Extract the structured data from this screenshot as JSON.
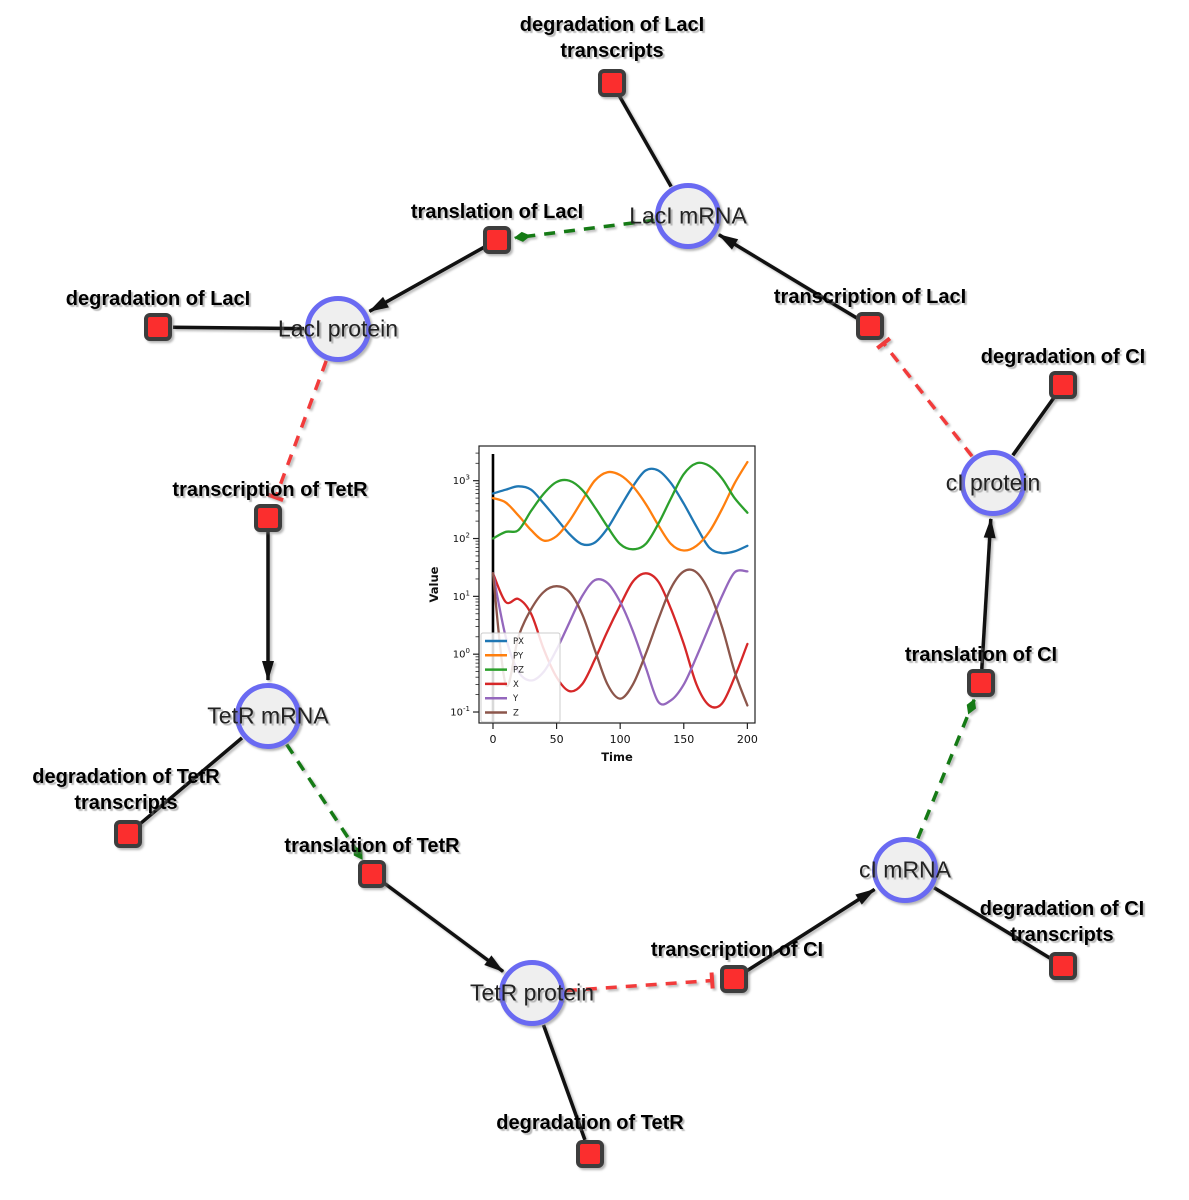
{
  "diagram": {
    "styles": {
      "species_fill": "#efefef",
      "species_border": "#6a6af2",
      "reaction_fill": "#fb2e2e",
      "reaction_border": "#3d3d3d",
      "reactant_edge_color": "#111111",
      "product_arrow_color": "#111111",
      "inhibition_edge_color": "#f23b3b",
      "modifier_edge_color": "#157a15"
    },
    "nodes": [
      {
        "id": "lacI_mrna",
        "kind": "species",
        "label": "LacI mRNA"
      },
      {
        "id": "lacI_protein",
        "kind": "species",
        "label": "LacI protein"
      },
      {
        "id": "tetR_mrna",
        "kind": "species",
        "label": "TetR mRNA"
      },
      {
        "id": "tetR_protein",
        "kind": "species",
        "label": "TetR protein"
      },
      {
        "id": "cI_mrna",
        "kind": "species",
        "label": "cI mRNA"
      },
      {
        "id": "cI_protein",
        "kind": "species",
        "label": "cI protein"
      },
      {
        "id": "deg_lacI_tx",
        "kind": "reaction",
        "label_lines": [
          "degradation of LacI",
          "transcripts"
        ]
      },
      {
        "id": "translation_lacI",
        "kind": "reaction",
        "label_lines": [
          "translation of LacI"
        ]
      },
      {
        "id": "transcription_lacI",
        "kind": "reaction",
        "label_lines": [
          "transcription of LacI"
        ]
      },
      {
        "id": "deg_lacI",
        "kind": "reaction",
        "label_lines": [
          "degradation of LacI"
        ]
      },
      {
        "id": "deg_cI",
        "kind": "reaction",
        "label_lines": [
          "degradation of CI"
        ]
      },
      {
        "id": "transcription_tetR",
        "kind": "reaction",
        "label_lines": [
          "transcription of TetR"
        ]
      },
      {
        "id": "translation_cI",
        "kind": "reaction",
        "label_lines": [
          "translation of CI"
        ]
      },
      {
        "id": "deg_tetR_tx",
        "kind": "reaction",
        "label_lines": [
          "degradation of TetR",
          "transcripts"
        ]
      },
      {
        "id": "translation_tetR",
        "kind": "reaction",
        "label_lines": [
          "translation of TetR"
        ]
      },
      {
        "id": "deg_cI_tx",
        "kind": "reaction",
        "label_lines": [
          "degradation of CI",
          "transcripts"
        ]
      },
      {
        "id": "transcription_cI",
        "kind": "reaction",
        "label_lines": [
          "transcription of CI"
        ]
      },
      {
        "id": "deg_tetR",
        "kind": "reaction",
        "label_lines": [
          "degradation of TetR"
        ]
      }
    ],
    "edges": [
      {
        "source": "lacI_mrna",
        "target": "deg_lacI_tx",
        "kind": "line"
      },
      {
        "source": "lacI_mrna",
        "target": "translation_lacI",
        "kind": "modifier"
      },
      {
        "source": "translation_lacI",
        "target": "lacI_protein",
        "kind": "arrow"
      },
      {
        "source": "lacI_protein",
        "target": "deg_lacI",
        "kind": "line"
      },
      {
        "source": "lacI_protein",
        "target": "transcription_tetR",
        "kind": "inhibit"
      },
      {
        "source": "transcription_tetR",
        "target": "tetR_mrna",
        "kind": "arrow"
      },
      {
        "source": "tetR_mrna",
        "target": "deg_tetR_tx",
        "kind": "line"
      },
      {
        "source": "tetR_mrna",
        "target": "translation_tetR",
        "kind": "modifier"
      },
      {
        "source": "translation_tetR",
        "target": "tetR_protein",
        "kind": "arrow"
      },
      {
        "source": "tetR_protein",
        "target": "deg_tetR",
        "kind": "line"
      },
      {
        "source": "tetR_protein",
        "target": "transcription_cI",
        "kind": "inhibit"
      },
      {
        "source": "transcription_cI",
        "target": "cI_mrna",
        "kind": "arrow"
      },
      {
        "source": "cI_mrna",
        "target": "deg_cI_tx",
        "kind": "line"
      },
      {
        "source": "cI_mrna",
        "target": "translation_cI",
        "kind": "modifier"
      },
      {
        "source": "translation_cI",
        "target": "cI_protein",
        "kind": "arrow"
      },
      {
        "source": "cI_protein",
        "target": "deg_cI",
        "kind": "line"
      },
      {
        "source": "cI_protein",
        "target": "transcription_lacI",
        "kind": "inhibit"
      },
      {
        "source": "transcription_lacI",
        "target": "lacI_mrna",
        "kind": "arrow"
      }
    ]
  },
  "chart_data": {
    "type": "line",
    "title": "",
    "xlabel": "Time",
    "ylabel": "Value",
    "x_ticks": [
      0,
      50,
      100,
      150,
      200
    ],
    "y_scale": "log",
    "y_tick_exponents": [
      3,
      2,
      1,
      0,
      -1
    ],
    "xlim": [
      -11,
      206
    ],
    "ylim_log10": [
      -1.19,
      3.6
    ],
    "grid": false,
    "legend_position": "lower left",
    "annotations": {
      "vertical_line_at_x": 0
    },
    "x_start": 0,
    "x_step": 10,
    "series": [
      {
        "name": "PX",
        "color": "#1f77b4",
        "values": [
          600,
          700,
          800,
          700,
          400,
          220,
          120,
          80,
          85,
          150,
          350,
          800,
          1500,
          1500,
          900,
          400,
          160,
          70,
          56,
          60,
          75
        ]
      },
      {
        "name": "PY",
        "color": "#ff7f0e",
        "values": [
          500,
          420,
          250,
          140,
          92,
          110,
          200,
          450,
          1000,
          1400,
          1250,
          800,
          400,
          170,
          80,
          62,
          75,
          130,
          320,
          900,
          2100
        ]
      },
      {
        "name": "PZ",
        "color": "#2ca02c",
        "values": [
          100,
          130,
          140,
          300,
          600,
          950,
          1000,
          700,
          350,
          160,
          80,
          65,
          80,
          180,
          500,
          1300,
          2000,
          1800,
          1100,
          500,
          280
        ]
      },
      {
        "name": "X",
        "color": "#d62728",
        "values": [
          25,
          8,
          9,
          5,
          1.2,
          0.4,
          0.23,
          0.3,
          0.8,
          2.5,
          7,
          18,
          25,
          18,
          6,
          1.5,
          0.3,
          0.13,
          0.14,
          0.4,
          1.5
        ]
      },
      {
        "name": "Y",
        "color": "#9467bd",
        "values": [
          25,
          2,
          0.5,
          0.35,
          0.5,
          1.2,
          3.5,
          10,
          19,
          17,
          8,
          2.5,
          0.6,
          0.15,
          0.16,
          0.3,
          0.9,
          3,
          10,
          26,
          27
        ]
      },
      {
        "name": "Z",
        "color": "#8c564b",
        "values": [
          25,
          0.3,
          2,
          6,
          12,
          15,
          12,
          5,
          1.2,
          0.3,
          0.17,
          0.3,
          1,
          4,
          14,
          27,
          26,
          12,
          3,
          0.5,
          0.13
        ]
      }
    ]
  }
}
